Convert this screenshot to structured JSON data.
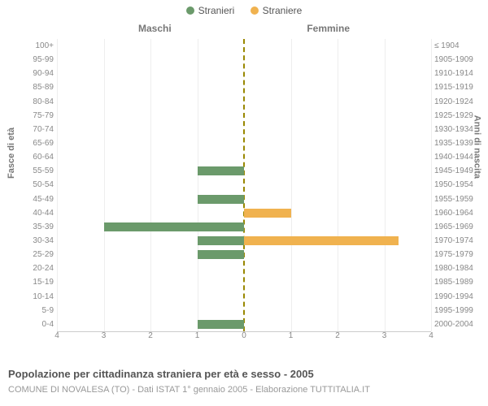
{
  "legend": {
    "male": {
      "label": "Stranieri",
      "color": "#6b9a6b"
    },
    "female": {
      "label": "Straniere",
      "color": "#f0b24f"
    }
  },
  "headers": {
    "left": "Maschi",
    "right": "Femmine"
  },
  "axis_titles": {
    "left": "Fasce di età",
    "right": "Anni di nascita"
  },
  "chart": {
    "type": "population-pyramid",
    "xmax": 4,
    "xticks": [
      0,
      1,
      2,
      3,
      4
    ],
    "bg_color": "#ffffff",
    "grid_color": "#eeeeee",
    "zero_line_color": "#998800",
    "male_color": "#6b9a6b",
    "female_color": "#f0b24f",
    "rows": [
      {
        "age": "100+",
        "birth": "≤ 1904",
        "m": 0,
        "f": 0
      },
      {
        "age": "95-99",
        "birth": "1905-1909",
        "m": 0,
        "f": 0
      },
      {
        "age": "90-94",
        "birth": "1910-1914",
        "m": 0,
        "f": 0
      },
      {
        "age": "85-89",
        "birth": "1915-1919",
        "m": 0,
        "f": 0
      },
      {
        "age": "80-84",
        "birth": "1920-1924",
        "m": 0,
        "f": 0
      },
      {
        "age": "75-79",
        "birth": "1925-1929",
        "m": 0,
        "f": 0
      },
      {
        "age": "70-74",
        "birth": "1930-1934",
        "m": 0,
        "f": 0
      },
      {
        "age": "65-69",
        "birth": "1935-1939",
        "m": 0,
        "f": 0
      },
      {
        "age": "60-64",
        "birth": "1940-1944",
        "m": 0,
        "f": 0
      },
      {
        "age": "55-59",
        "birth": "1945-1949",
        "m": 1,
        "f": 0
      },
      {
        "age": "50-54",
        "birth": "1950-1954",
        "m": 0,
        "f": 0
      },
      {
        "age": "45-49",
        "birth": "1955-1959",
        "m": 1,
        "f": 0
      },
      {
        "age": "40-44",
        "birth": "1960-1964",
        "m": 0,
        "f": 1
      },
      {
        "age": "35-39",
        "birth": "1965-1969",
        "m": 3,
        "f": 0
      },
      {
        "age": "30-34",
        "birth": "1970-1974",
        "m": 1,
        "f": 3.3
      },
      {
        "age": "25-29",
        "birth": "1975-1979",
        "m": 1,
        "f": 0
      },
      {
        "age": "20-24",
        "birth": "1980-1984",
        "m": 0,
        "f": 0
      },
      {
        "age": "15-19",
        "birth": "1985-1989",
        "m": 0,
        "f": 0
      },
      {
        "age": "10-14",
        "birth": "1990-1994",
        "m": 0,
        "f": 0
      },
      {
        "age": "5-9",
        "birth": "1995-1999",
        "m": 0,
        "f": 0
      },
      {
        "age": "0-4",
        "birth": "2000-2004",
        "m": 1,
        "f": 0
      }
    ]
  },
  "title": "Popolazione per cittadinanza straniera per età e sesso - 2005",
  "subtitle": "COMUNE DI NOVALESA (TO) - Dati ISTAT 1° gennaio 2005 - Elaborazione TUTTITALIA.IT"
}
